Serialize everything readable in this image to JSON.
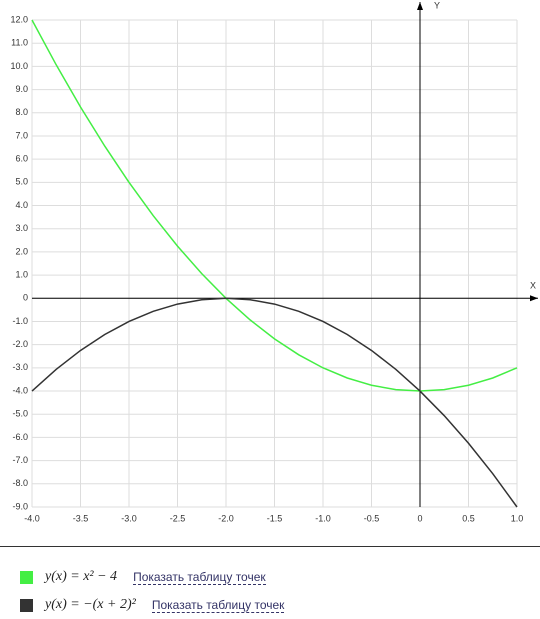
{
  "chart_data": {
    "type": "line",
    "x_label": "X",
    "y_label": "Y",
    "x": [
      -4,
      -3.75,
      -3.5,
      -3.25,
      -3,
      -2.75,
      -2.5,
      -2.25,
      -2,
      -1.75,
      -1.5,
      -1.25,
      -1,
      -0.75,
      -0.5,
      -0.25,
      0,
      0.25,
      0.5,
      0.75,
      1
    ],
    "series": [
      {
        "name": "y(x) = x² − 4",
        "color": "#44ee44",
        "values": [
          12,
          10.0625,
          8.25,
          6.5625,
          5,
          3.5625,
          2.25,
          1.0625,
          0,
          -0.9375,
          -1.75,
          -2.4375,
          -3,
          -3.4375,
          -3.75,
          -3.9375,
          -4,
          -3.9375,
          -3.75,
          -3.4375,
          -3
        ]
      },
      {
        "name": "y(x) = −(x + 2)²",
        "color": "#333333",
        "values": [
          -4,
          -3.0625,
          -2.25,
          -1.5625,
          -1,
          -0.5625,
          -0.25,
          -0.0625,
          0,
          -0.0625,
          -0.25,
          -0.5625,
          -1,
          -1.5625,
          -2.25,
          -3.0625,
          -4,
          -5.0625,
          -6.25,
          -7.5625,
          -9
        ]
      }
    ],
    "xlim": [
      -4,
      1
    ],
    "ylim": [
      -9,
      12
    ],
    "xticks": [
      {
        "value": -4,
        "label": "-4.0"
      },
      -3.5,
      {
        "value": -3,
        "label": "-3.0"
      },
      -2.5,
      {
        "value": -2,
        "label": "-2.0"
      },
      -1.5,
      {
        "value": -1,
        "label": "-1.0"
      },
      -0.5,
      0,
      0.5,
      {
        "value": 1,
        "label": "1.0"
      }
    ],
    "yticks": [
      {
        "value": 12,
        "label": "12.0"
      },
      {
        "value": 11,
        "label": "11.0"
      },
      {
        "value": 10,
        "label": "10.0"
      },
      {
        "value": 9,
        "label": "9.0"
      },
      {
        "value": 8,
        "label": "8.0"
      },
      {
        "value": 7,
        "label": "7.0"
      },
      {
        "value": 6,
        "label": "6.0"
      },
      {
        "value": 5,
        "label": "5.0"
      },
      {
        "value": 4,
        "label": "4.0"
      },
      {
        "value": 3,
        "label": "3.0"
      },
      {
        "value": 2,
        "label": "2.0"
      },
      {
        "value": 1,
        "label": "1.0"
      },
      0,
      {
        "value": -1,
        "label": "-1.0"
      },
      {
        "value": -2,
        "label": "-2.0"
      },
      {
        "value": -3,
        "label": "-3.0"
      },
      {
        "value": -4,
        "label": "-4.0"
      },
      {
        "value": -5,
        "label": "-5.0"
      },
      {
        "value": -6,
        "label": "-6.0"
      },
      {
        "value": -7,
        "label": "-7.0"
      },
      {
        "value": -8,
        "label": "-8.0"
      },
      {
        "value": -9,
        "label": "-9.0"
      }
    ],
    "grid": true,
    "legend_link": "Показать таблицу точек"
  }
}
